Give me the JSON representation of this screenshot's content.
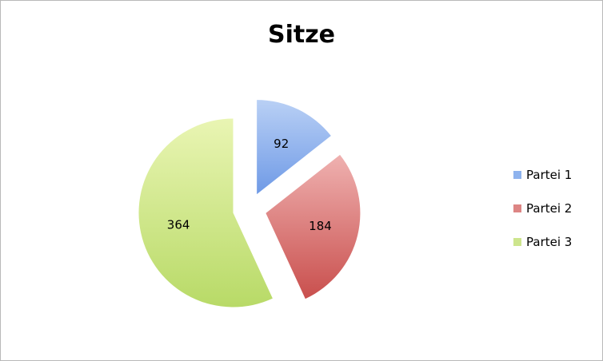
{
  "chart_data": {
    "type": "pie",
    "title": "Sitze",
    "categories": [
      "Partei 1",
      "Partei 2",
      "Partei 3"
    ],
    "values": [
      92,
      184,
      364
    ],
    "colors": [
      "#8eb3ee",
      "#dd8584",
      "#cde58d"
    ],
    "exploded": true,
    "data_labels": true,
    "legend": "right"
  }
}
